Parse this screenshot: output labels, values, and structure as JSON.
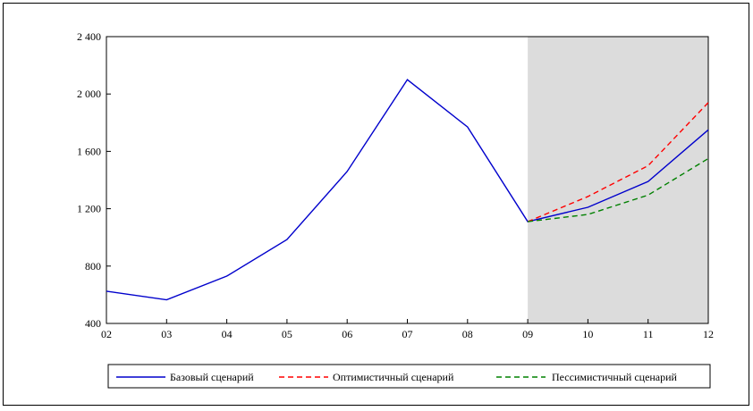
{
  "chart_data": {
    "type": "line",
    "x": [
      "02",
      "03",
      "04",
      "05",
      "06",
      "07",
      "08",
      "09",
      "10",
      "11",
      "12"
    ],
    "y_ticks": [
      400,
      800,
      1200,
      1600,
      2000,
      2400
    ],
    "y_tick_labels": [
      "400",
      "800",
      "1 200",
      "1 600",
      "2 000",
      "2 400"
    ],
    "ylim": [
      400,
      2400
    ],
    "forecast_shaded_from": "09",
    "forecast_shade_color": "#dcdcdc",
    "legend_position": "bottom",
    "series": [
      {
        "name": "Базовый сценарий",
        "color": "#0000cc",
        "dash": "solid",
        "x": [
          "02",
          "03",
          "04",
          "05",
          "06",
          "07",
          "08",
          "09",
          "10",
          "11",
          "12"
        ],
        "values": [
          625,
          565,
          730,
          985,
          1460,
          2100,
          1770,
          1110,
          1210,
          1390,
          1750
        ]
      },
      {
        "name": "Оптимистичный сценарий",
        "color": "#ff0000",
        "dash": "dashed",
        "x": [
          "09",
          "10",
          "11",
          "12"
        ],
        "values": [
          1110,
          1285,
          1500,
          1940
        ]
      },
      {
        "name": "Пессимистичный сценарий",
        "color": "#008000",
        "dash": "dashed",
        "x": [
          "09",
          "10",
          "11",
          "12"
        ],
        "values": [
          1110,
          1160,
          1295,
          1550
        ]
      }
    ]
  }
}
